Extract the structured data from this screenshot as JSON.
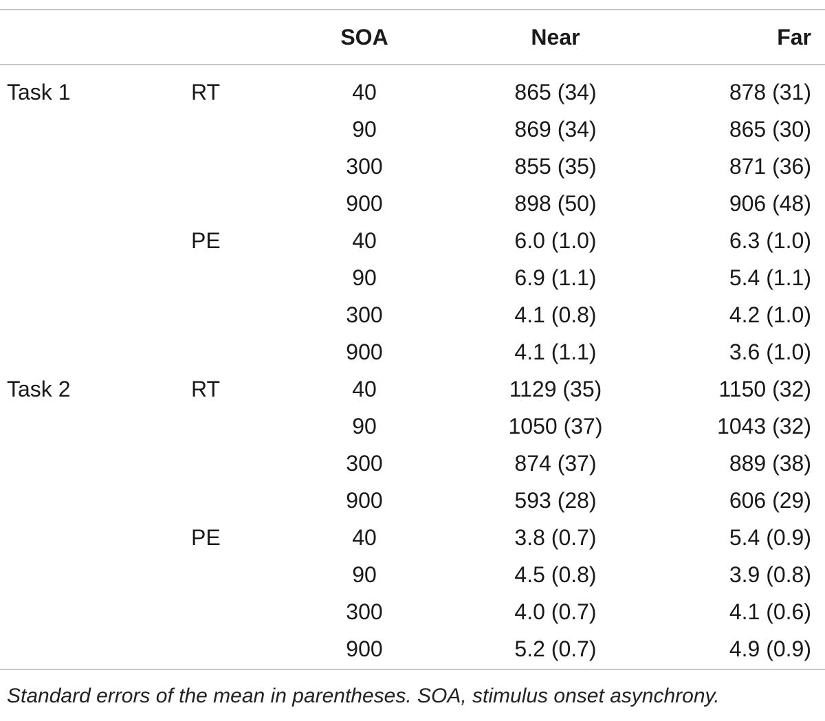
{
  "table": {
    "headers": {
      "task": "",
      "measure": "",
      "soa": "SOA",
      "near": "Near",
      "far": "Far"
    },
    "rows": [
      {
        "task": "Task 1",
        "measure": "RT",
        "soa": "40",
        "near": "865 (34)",
        "far": "878 (31)"
      },
      {
        "task": "",
        "measure": "",
        "soa": "90",
        "near": "869 (34)",
        "far": "865 (30)"
      },
      {
        "task": "",
        "measure": "",
        "soa": "300",
        "near": "855 (35)",
        "far": "871 (36)"
      },
      {
        "task": "",
        "measure": "",
        "soa": "900",
        "near": "898 (50)",
        "far": "906 (48)"
      },
      {
        "task": "",
        "measure": "PE",
        "soa": "40",
        "near": "6.0 (1.0)",
        "far": "6.3 (1.0)"
      },
      {
        "task": "",
        "measure": "",
        "soa": "90",
        "near": "6.9 (1.1)",
        "far": "5.4 (1.1)"
      },
      {
        "task": "",
        "measure": "",
        "soa": "300",
        "near": "4.1 (0.8)",
        "far": "4.2 (1.0)"
      },
      {
        "task": "",
        "measure": "",
        "soa": "900",
        "near": "4.1 (1.1)",
        "far": "3.6 (1.0)"
      },
      {
        "task": "Task 2",
        "measure": "RT",
        "soa": "40",
        "near": "1129 (35)",
        "far": "1150 (32)"
      },
      {
        "task": "",
        "measure": "",
        "soa": "90",
        "near": "1050 (37)",
        "far": "1043 (32)"
      },
      {
        "task": "",
        "measure": "",
        "soa": "300",
        "near": "874 (37)",
        "far": "889 (38)"
      },
      {
        "task": "",
        "measure": "",
        "soa": "900",
        "near": "593 (28)",
        "far": "606 (29)"
      },
      {
        "task": "",
        "measure": "PE",
        "soa": "40",
        "near": "3.8 (0.7)",
        "far": "5.4 (0.9)"
      },
      {
        "task": "",
        "measure": "",
        "soa": "90",
        "near": "4.5 (0.8)",
        "far": "3.9 (0.8)"
      },
      {
        "task": "",
        "measure": "",
        "soa": "300",
        "near": "4.0 (0.7)",
        "far": "4.1 (0.6)"
      },
      {
        "task": "",
        "measure": "",
        "soa": "900",
        "near": "5.2 (0.7)",
        "far": "4.9 (0.9)"
      }
    ]
  },
  "footnote": "Standard errors of the mean in parentheses. SOA, stimulus onset asynchrony.",
  "colors": {
    "rule": "#c8c8c8",
    "text": "#1a1a1a"
  }
}
